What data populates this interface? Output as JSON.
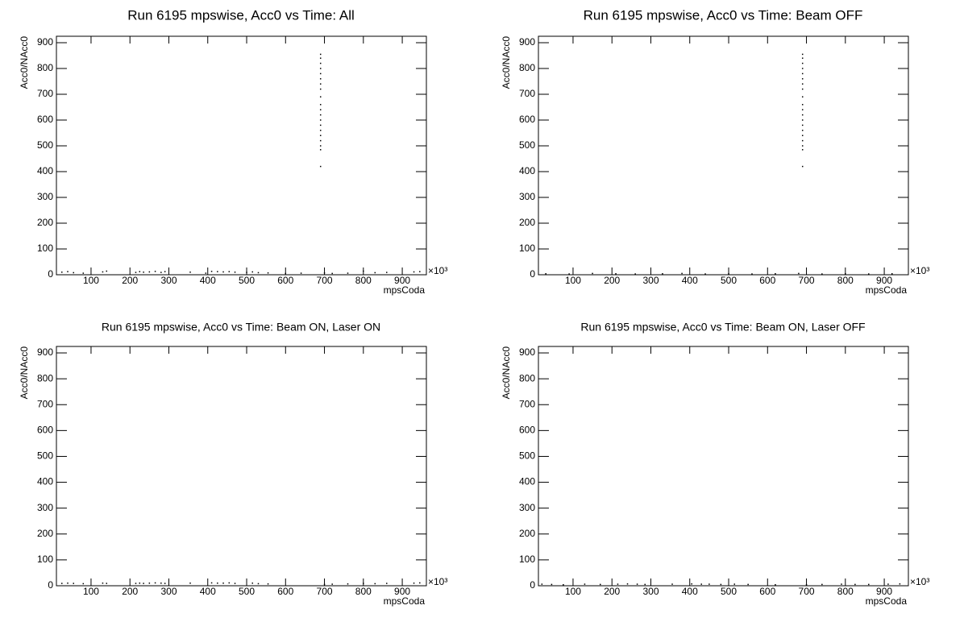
{
  "chart_data": [
    {
      "type": "scatter",
      "title": "Run 6195 mpswise, Acc0 vs Time: All",
      "x_label": "mpsCoda",
      "y_label": "Acc0/NAcc0",
      "x_multiplier": "×10³",
      "xlim": [
        11,
        962
      ],
      "ylim": [
        0,
        925
      ],
      "xticks": [
        100,
        200,
        300,
        400,
        500,
        600,
        700,
        800,
        900
      ],
      "yticks": [
        0,
        100,
        200,
        300,
        400,
        500,
        600,
        700,
        800,
        900
      ],
      "series": [
        {
          "color": "#000000",
          "x": [
            690,
            690,
            690,
            690,
            690,
            690,
            690,
            690,
            690,
            690,
            690,
            690,
            690,
            690,
            690,
            690,
            690,
            690,
            690,
            690,
            25,
            40,
            55,
            80,
            130,
            140,
            215,
            225,
            235,
            250,
            265,
            280,
            290,
            355,
            395,
            410,
            425,
            440,
            455,
            470,
            500,
            515,
            530,
            555,
            600,
            640,
            700,
            720,
            760,
            800,
            830,
            860,
            930,
            945
          ],
          "y": [
            420,
            485,
            500,
            520,
            540,
            560,
            580,
            600,
            620,
            640,
            660,
            690,
            720,
            740,
            760,
            780,
            800,
            820,
            840,
            855,
            10,
            12,
            8,
            6,
            11,
            14,
            9,
            12,
            10,
            11,
            13,
            9,
            12,
            10,
            6,
            13,
            12,
            11,
            12,
            10,
            9,
            11,
            8,
            7,
            5,
            6,
            7,
            5,
            6,
            14,
            8,
            9,
            11,
            12
          ]
        }
      ]
    },
    {
      "type": "scatter",
      "title": "Run 6195 mpswise, Acc0 vs Time: Beam OFF",
      "x_label": "mpsCoda",
      "y_label": "Acc0/NAcc0",
      "x_multiplier": "×10³",
      "xlim": [
        11,
        962
      ],
      "ylim": [
        0,
        925
      ],
      "xticks": [
        100,
        200,
        300,
        400,
        500,
        600,
        700,
        800,
        900
      ],
      "yticks": [
        0,
        100,
        200,
        300,
        400,
        500,
        600,
        700,
        800,
        900
      ],
      "series": [
        {
          "color": "#000000",
          "x": [
            690,
            690,
            690,
            690,
            690,
            690,
            690,
            690,
            690,
            690,
            690,
            690,
            690,
            690,
            690,
            690,
            690,
            690,
            690,
            690,
            30,
            90,
            150,
            210,
            260,
            330,
            380,
            440,
            500,
            560,
            620,
            680,
            740,
            800,
            860,
            920
          ],
          "y": [
            420,
            485,
            500,
            520,
            540,
            560,
            580,
            600,
            620,
            640,
            660,
            690,
            720,
            740,
            760,
            780,
            800,
            820,
            840,
            855,
            4,
            3,
            5,
            4,
            3,
            4,
            5,
            3,
            4,
            3,
            4,
            5,
            3,
            4,
            3,
            4
          ]
        }
      ]
    },
    {
      "type": "scatter",
      "title": "Run 6195 mpswise, Acc0 vs Time: Beam ON, Laser ON",
      "x_label": "mpsCoda",
      "y_label": "Acc0/NAcc0",
      "x_multiplier": "×10³",
      "xlim": [
        11,
        962
      ],
      "ylim": [
        0,
        925
      ],
      "xticks": [
        100,
        200,
        300,
        400,
        500,
        600,
        700,
        800,
        900
      ],
      "yticks": [
        0,
        100,
        200,
        300,
        400,
        500,
        600,
        700,
        800,
        900
      ],
      "series": [
        {
          "color": "#000000",
          "x": [
            25,
            40,
            55,
            80,
            130,
            140,
            215,
            225,
            235,
            250,
            265,
            280,
            290,
            355,
            410,
            425,
            440,
            455,
            470,
            515,
            530,
            555,
            700,
            720,
            760,
            800,
            830,
            860,
            930,
            945
          ],
          "y": [
            9,
            10,
            9,
            8,
            10,
            9,
            9,
            10,
            9,
            10,
            11,
            10,
            9,
            10,
            11,
            10,
            10,
            11,
            9,
            10,
            8,
            7,
            5,
            6,
            7,
            9,
            8,
            9,
            10,
            11
          ]
        }
      ]
    },
    {
      "type": "scatter",
      "title": "Run 6195 mpswise, Acc0 vs Time: Beam ON, Laser OFF",
      "x_label": "mpsCoda",
      "y_label": "Acc0/NAcc0",
      "x_multiplier": "×10³",
      "xlim": [
        11,
        962
      ],
      "ylim": [
        0,
        925
      ],
      "xticks": [
        100,
        200,
        300,
        400,
        500,
        600,
        700,
        800,
        900
      ],
      "yticks": [
        0,
        100,
        200,
        300,
        400,
        500,
        600,
        700,
        800,
        900
      ],
      "series": [
        {
          "color": "#000000",
          "x": [
            20,
            45,
            75,
            130,
            170,
            215,
            240,
            265,
            285,
            355,
            405,
            430,
            450,
            480,
            515,
            550,
            620,
            700,
            740,
            790,
            825,
            860,
            910,
            940
          ],
          "y": [
            6,
            5,
            4,
            6,
            5,
            6,
            7,
            6,
            5,
            6,
            7,
            6,
            6,
            5,
            6,
            5,
            4,
            4,
            5,
            6,
            5,
            5,
            6,
            7
          ]
        }
      ]
    }
  ]
}
